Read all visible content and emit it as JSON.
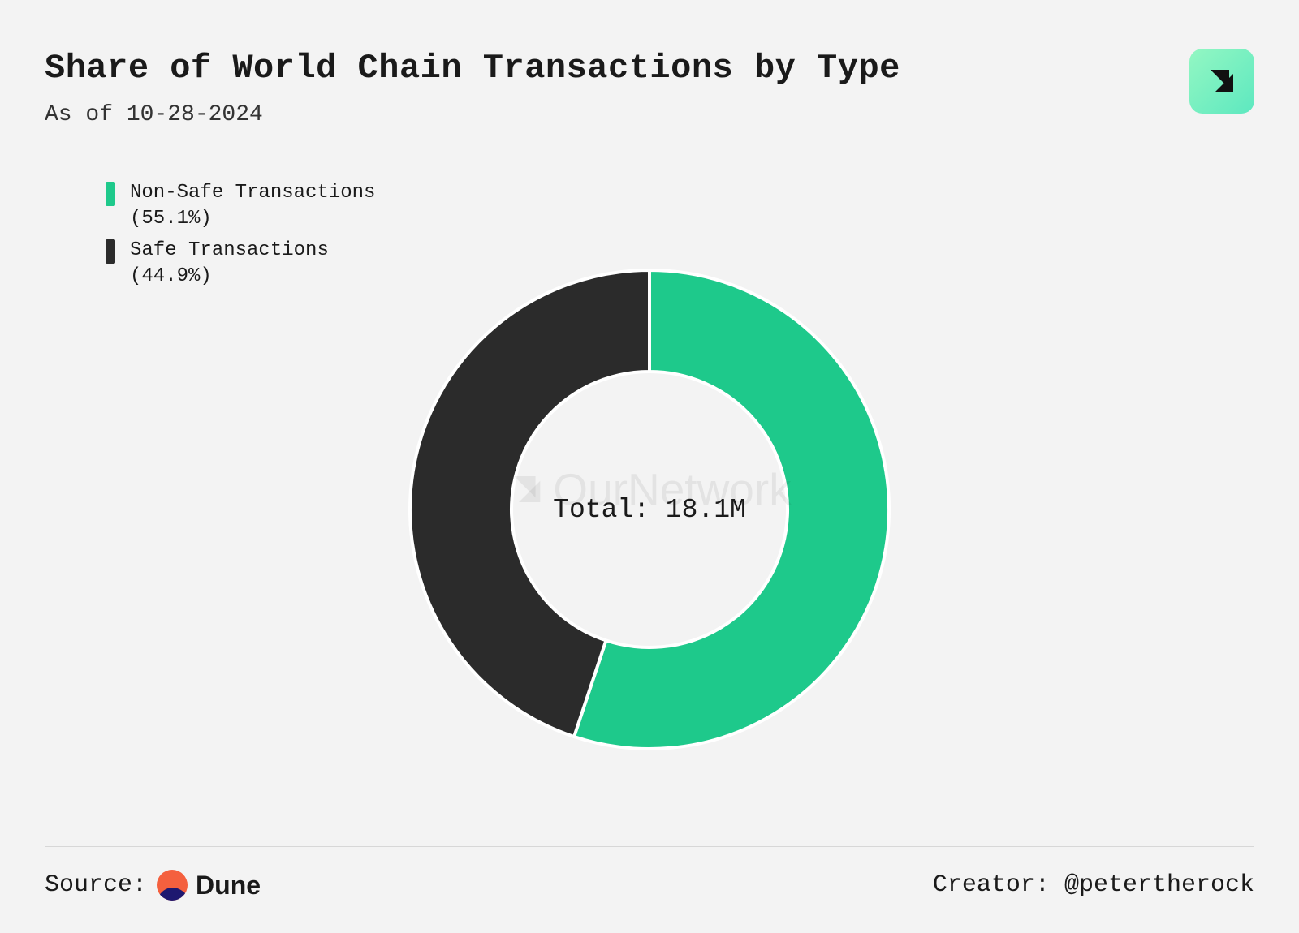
{
  "header": {
    "title": "Share of World Chain Transactions by Type",
    "subtitle": "As of 10-28-2024"
  },
  "chart": {
    "type": "donut",
    "center_label": "Total: 18.1M",
    "watermark": "OurNetwork",
    "background_color": "#f3f3f3",
    "ring_outer_radius": 295,
    "ring_inner_radius": 170,
    "stroke_color": "#ffffff",
    "stroke_width": 4,
    "slices": [
      {
        "label": "Non-Safe Transactions",
        "percent": 55.1,
        "percent_text": "(55.1%)",
        "color": "#1ec98b"
      },
      {
        "label": "Safe Transactions",
        "percent": 44.9,
        "percent_text": "(44.9%)",
        "color": "#2b2b2b"
      }
    ],
    "title_fontsize": 42,
    "subtitle_fontsize": 28,
    "legend_fontsize": 24,
    "center_label_fontsize": 33
  },
  "badge": {
    "bg_gradient_from": "#93f7c2",
    "bg_gradient_to": "#5de8c0",
    "glyph_color": "#111111"
  },
  "footer": {
    "source_prefix": "Source:",
    "source_name": "Dune",
    "creator_prefix": "Creator:",
    "creator_handle": "@petertherock"
  }
}
